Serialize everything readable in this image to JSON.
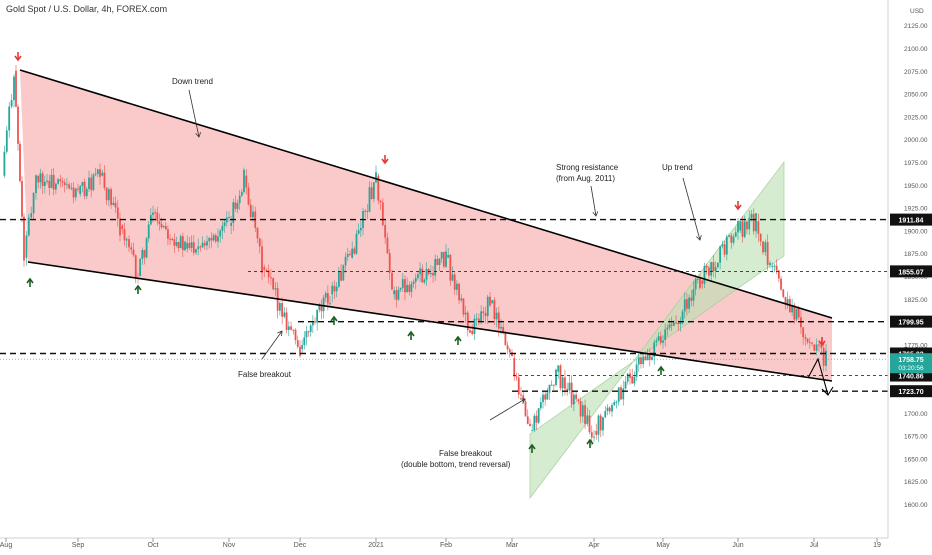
{
  "header": {
    "title": "Gold Spot / U.S. Dollar, 4h, FOREX.com"
  },
  "chart_data": {
    "type": "candlestick",
    "title": "Gold Spot / U.S. Dollar, 4h, FOREX.com",
    "currency": "USD",
    "ylim": [
      1590,
      2130
    ],
    "y_ticks": [
      1600,
      1625,
      1650,
      1675,
      1700,
      1725,
      1750,
      1775,
      1800,
      1825,
      1850,
      1875,
      1900,
      1925,
      1950,
      1975,
      2000,
      2025,
      2050,
      2075,
      2100,
      2125
    ],
    "x_ticks": [
      "Aug",
      "Sep",
      "Oct",
      "Nov",
      "Dec",
      "2021",
      "Feb",
      "Mar",
      "Apr",
      "May",
      "Jun",
      "Jul",
      "19"
    ],
    "series_price_path": [
      [
        "Aug",
        1960
      ],
      [
        "Aug",
        2075
      ],
      [
        "Aug",
        1870
      ],
      [
        "Aug",
        1960
      ],
      [
        "Sep",
        1940
      ],
      [
        "Sep",
        1960
      ],
      [
        "Sep",
        1905
      ],
      [
        "Sep",
        1850
      ],
      [
        "Oct",
        1920
      ],
      [
        "Oct",
        1880
      ],
      [
        "Nov",
        1905
      ],
      [
        "Nov",
        1960
      ],
      [
        "Nov",
        1860
      ],
      [
        "Dec",
        1770
      ],
      [
        "Dec",
        1830
      ],
      [
        "Dec",
        1870
      ],
      [
        "2021",
        1960
      ],
      [
        "2021",
        1830
      ],
      [
        "Feb",
        1870
      ],
      [
        "Feb",
        1790
      ],
      [
        "Feb",
        1820
      ],
      [
        "Mar",
        1760
      ],
      [
        "Mar",
        1680
      ],
      [
        "Mar",
        1745
      ],
      [
        "Apr",
        1680
      ],
      [
        "Apr",
        1740
      ],
      [
        "May",
        1780
      ],
      [
        "May",
        1845
      ],
      [
        "Jun",
        1900
      ],
      [
        "Jun",
        1910
      ],
      [
        "Jun",
        1860
      ],
      [
        "Jul",
        1775
      ],
      [
        "Jul",
        1758
      ]
    ],
    "horizontal_levels": [
      {
        "value": 1911.84,
        "label": "1911.84",
        "style": "dashed-bold"
      },
      {
        "value": 1855.07,
        "label": "1855.07",
        "style": "dashed-thin"
      },
      {
        "value": 1799.95,
        "label": "1799.95",
        "style": "dashed-bold"
      },
      {
        "value": 1765.03,
        "label": "1765.03",
        "style": "dashed-bold"
      },
      {
        "value": 1740.86,
        "label": "1740.86",
        "style": "dashed-thin"
      },
      {
        "value": 1723.7,
        "label": "1723.70",
        "style": "dashed-bold"
      }
    ],
    "current_price": {
      "value": 1758.75,
      "label": "1758.75",
      "countdown": "03:20:56",
      "color": "#26a69a"
    },
    "annotations": [
      {
        "text": "Down trend"
      },
      {
        "text": "Strong resistance"
      },
      {
        "text": "(from Aug. 2011)"
      },
      {
        "text": "Up trend"
      },
      {
        "text": "False breakout"
      },
      {
        "text": "False breakout"
      },
      {
        "text": "(double bottom, trend reversal)"
      }
    ],
    "colors": {
      "up": "#26a69a",
      "down": "#ef5350",
      "downtrend_fill": "#f7a6a6",
      "uptrend_fill": "#b9dfb0",
      "arrow_down": "#e53935",
      "arrow_up": "#1b5e20"
    }
  }
}
